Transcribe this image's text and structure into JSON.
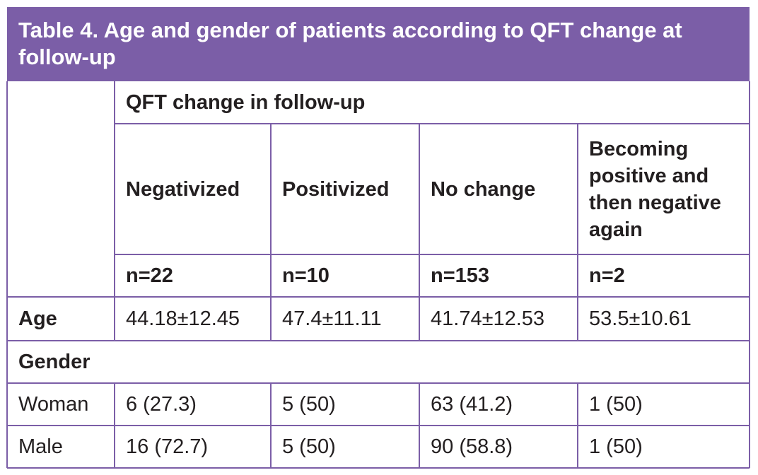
{
  "title": "Table 4. Age and gender of patients according to QFT change at follow-up",
  "table": {
    "group_header": "QFT change in follow-up",
    "columns": [
      "Negativized",
      "Positivized",
      "No change",
      "Becoming positive and then negative again"
    ],
    "n": [
      "n=22",
      "n=10",
      "n=153",
      "n=2"
    ],
    "age": {
      "label": "Age",
      "values": [
        "44.18±12.45",
        "47.4±11.11",
        "41.74±12.53",
        "53.5±10.61"
      ]
    },
    "gender": {
      "label": "Gender",
      "rows": [
        {
          "label": "Woman",
          "values": [
            "6 (27.3)",
            "5 (50)",
            "63 (41.2)",
            "1 (50)"
          ]
        },
        {
          "label": "Male",
          "values": [
            "16 (72.7)",
            "5 (50)",
            "90 (58.8)",
            "1 (50)"
          ]
        }
      ]
    }
  }
}
